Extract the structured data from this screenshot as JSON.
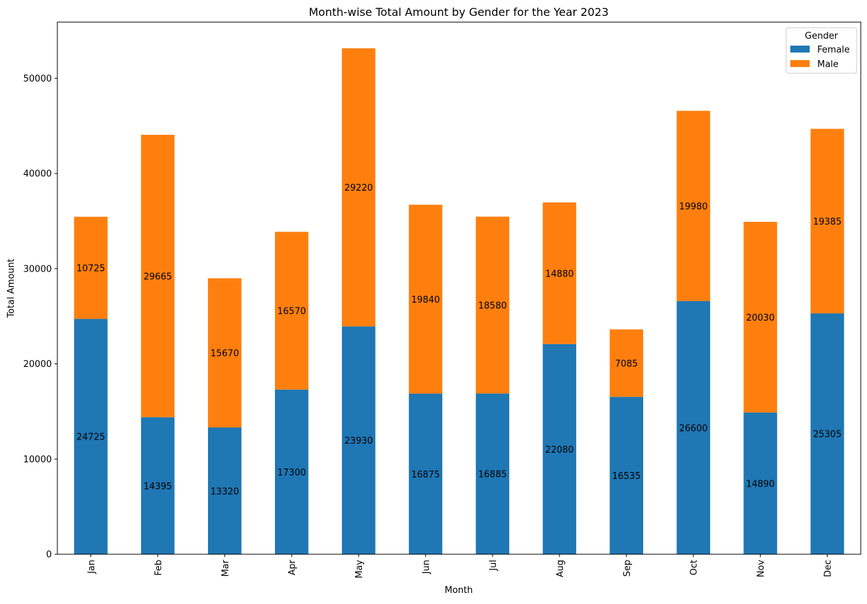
{
  "chart_data": {
    "type": "bar",
    "stacked": true,
    "title": "Month-wise Total Amount by Gender for the Year 2023",
    "xlabel": "Month",
    "ylabel": "Total Amount",
    "categories": [
      "Jan",
      "Feb",
      "Mar",
      "Apr",
      "May",
      "Jun",
      "Jul",
      "Aug",
      "Sep",
      "Oct",
      "Nov",
      "Dec"
    ],
    "series": [
      {
        "name": "Female",
        "color": "#1f77b4",
        "values": [
          24725,
          14395,
          13320,
          17300,
          23930,
          16875,
          16885,
          22080,
          16535,
          26600,
          14890,
          25305
        ]
      },
      {
        "name": "Male",
        "color": "#ff7f0e",
        "values": [
          10725,
          29665,
          15670,
          16570,
          29220,
          19840,
          18580,
          14880,
          7085,
          19980,
          20030,
          19385
        ]
      }
    ],
    "ylim": [
      0,
      55900
    ],
    "yticks": [
      0,
      10000,
      20000,
      30000,
      40000,
      50000
    ],
    "legend": {
      "title": "Gender",
      "position": "top-right"
    },
    "grid": false,
    "data_labels": true
  }
}
